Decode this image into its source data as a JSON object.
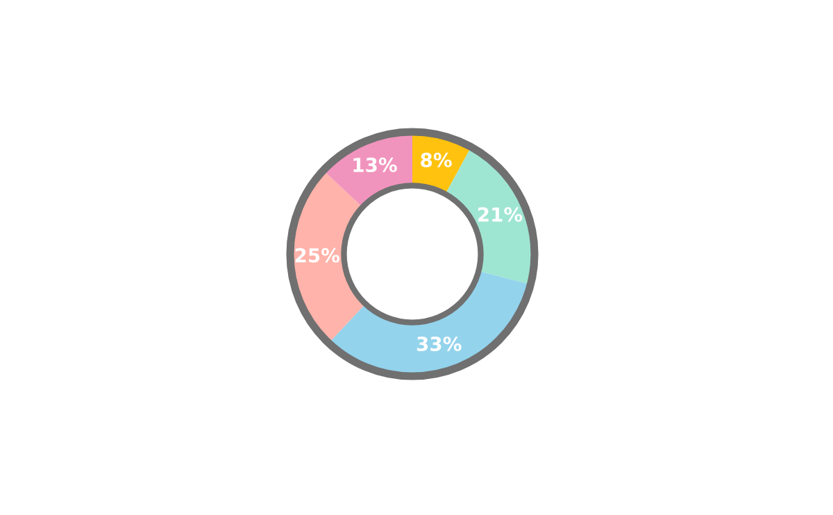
{
  "chart_data": {
    "type": "donut",
    "categories": [
      null,
      null,
      null,
      null,
      null
    ],
    "values": [
      8,
      21,
      33,
      25,
      13
    ],
    "colors": [
      "#ffc20e",
      "#9fe6d2",
      "#93d3ec",
      "#ffb3aa",
      "#f194bd"
    ],
    "value_labels": [
      "8%",
      "21%",
      "33%",
      "25%",
      "13%"
    ]
  }
}
